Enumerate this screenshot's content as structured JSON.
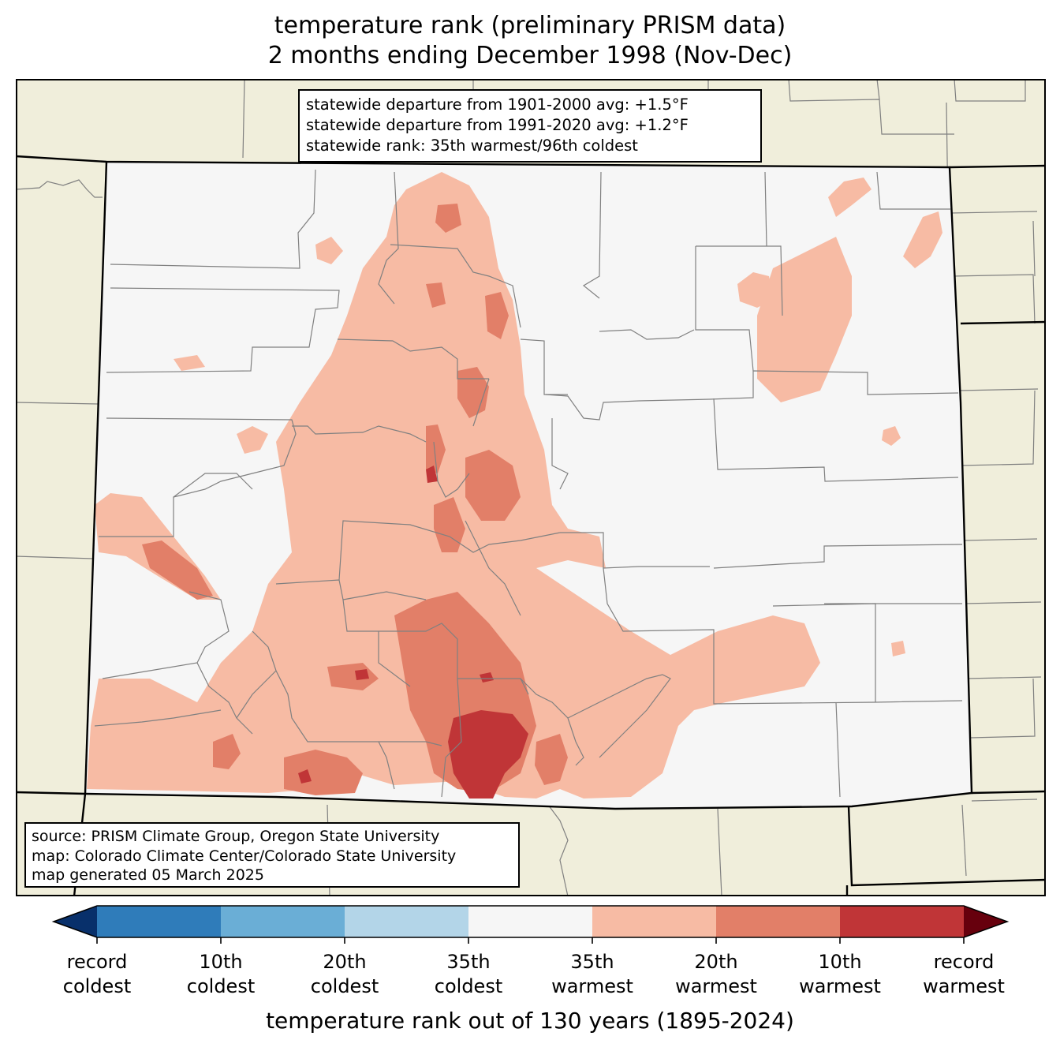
{
  "title": {
    "line1": "temperature rank (preliminary PRISM data)",
    "line2": "2 months ending December 1998 (Nov-Dec)"
  },
  "info": {
    "line1": "statewide departure from 1901-2000 avg: +1.5°F",
    "line2": "statewide departure from 1991-2020 avg: +1.2°F",
    "line3": "statewide rank: 35th warmest/96th coldest"
  },
  "source": {
    "line1": "source: PRISM Climate Group, Oregon State University",
    "line2": "map: Colorado Climate Center/Colorado State University",
    "line3": "map generated 05 March 2025"
  },
  "colorbar": {
    "title": "temperature rank out of 130 years (1895-2024)",
    "colors": [
      "#08306b",
      "#2f7cba",
      "#6aaed6",
      "#b3d5e8",
      "#f6f6f6",
      "#f7bba4",
      "#e27f68",
      "#c03537",
      "#67000d"
    ],
    "labels": [
      {
        "top": "record",
        "bottom": "coldest"
      },
      {
        "top": "10th",
        "bottom": "coldest"
      },
      {
        "top": "20th",
        "bottom": "coldest"
      },
      {
        "top": "35th",
        "bottom": "coldest"
      },
      {
        "top": "35th",
        "bottom": "warmest"
      },
      {
        "top": "20th",
        "bottom": "warmest"
      },
      {
        "top": "10th",
        "bottom": "warmest"
      },
      {
        "top": "record",
        "bottom": "warmest"
      }
    ]
  },
  "map_colors": {
    "background": "#f0eedb",
    "neutral": "#f6f6f6",
    "warm35": "#f7bba4",
    "warm20": "#e27f68",
    "warm10": "#c03537",
    "border": "#000000",
    "county": "#808080"
  }
}
